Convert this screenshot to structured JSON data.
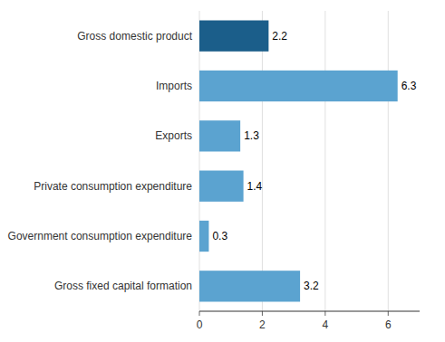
{
  "chart_data": {
    "type": "bar",
    "orientation": "horizontal",
    "categories": [
      "Gross fixed capital formation",
      "Government consumption expenditure",
      "Private consumption expenditure",
      "Exports",
      "Imports",
      "Gross domestic product"
    ],
    "values": [
      3.2,
      0.3,
      1.4,
      1.3,
      6.3,
      2.2
    ],
    "colors": [
      "#5ba3d0",
      "#5ba3d0",
      "#5ba3d0",
      "#5ba3d0",
      "#5ba3d0",
      "#1b5e8a"
    ],
    "xlim": [
      0,
      7
    ],
    "xticks": [
      0,
      2,
      4,
      6
    ],
    "grid": true,
    "data_labels": true
  }
}
